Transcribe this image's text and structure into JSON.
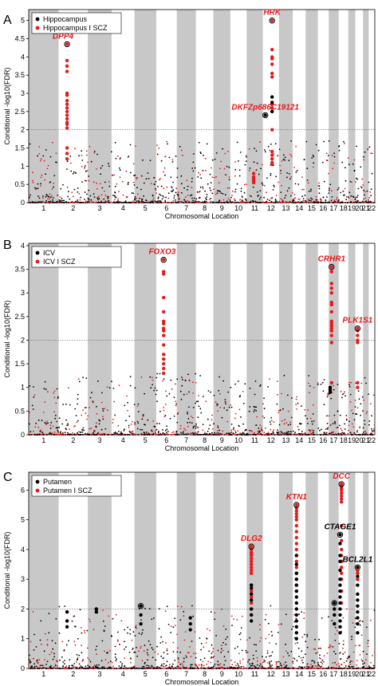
{
  "chart_data": [
    {
      "type": "scatter",
      "panel_letter": "A",
      "xlabel": "Chromosomal Location",
      "ylabel": "Conditional -log10(FDR)",
      "ylim": [
        0,
        5.3
      ],
      "yticks": [
        0,
        0.5,
        1,
        1.5,
        2,
        2.5,
        3,
        3.5,
        4,
        4.5,
        5
      ],
      "fdr_threshold": 2,
      "chromosomes": [
        "1",
        "2",
        "3",
        "4",
        "5",
        "6",
        "7",
        "8",
        "9",
        "10",
        "11",
        "12",
        "13",
        "14",
        "15",
        "16",
        "17",
        "18",
        "19",
        "20",
        "21",
        "22"
      ],
      "legend_placement": "top-left",
      "series": [
        {
          "name": "Hippocampus",
          "color": "#000000"
        },
        {
          "name": "Hippocampus I SCZ",
          "color": "#e41a1c"
        }
      ],
      "annotations": [
        {
          "label": "DPP4",
          "chrom": 2,
          "y": 4.35,
          "color": "#e41a1c"
        },
        {
          "label": "HRK",
          "chrom": 12.6,
          "y": 5.0,
          "color": "#e41a1c"
        },
        {
          "label": "DKFZp686C19121",
          "chrom": 12,
          "y": 2.4,
          "color": "#e41a1c"
        }
      ],
      "peaks": [
        {
          "chrom": 2.2,
          "points": [
            4.35,
            3.9,
            3.75,
            3.6,
            3.0,
            2.95,
            2.8,
            2.7,
            2.6,
            2.5,
            2.4,
            2.3,
            2.2,
            2.15,
            2.05,
            1.5,
            1.35,
            1.2
          ],
          "color": "#e41a1c",
          "ring": 4.35
        },
        {
          "chrom": 12.6,
          "points": [
            5.0,
            4.2,
            4.0,
            3.95,
            3.8,
            3.55,
            3.45,
            2.7,
            2.6,
            2.5,
            2.0,
            1.4,
            1.3,
            1.2,
            1.1,
            1.05
          ],
          "color": "#e41a1c",
          "ring": 5.0
        },
        {
          "chrom": 12.6,
          "points": [
            2.9,
            2.75,
            2.5
          ],
          "color": "#000000"
        },
        {
          "chrom": 12.0,
          "points": [
            2.4
          ],
          "color": "#000000",
          "ring": 2.4
        },
        {
          "chrom": 11.4,
          "points": [
            0.8,
            0.7,
            0.65,
            0.6,
            0.55
          ],
          "color": "#e41a1c"
        }
      ]
    },
    {
      "type": "scatter",
      "panel_letter": "B",
      "xlabel": "Chromosomal Location",
      "ylabel": "Conditional -log10(FDR)",
      "ylim": [
        0,
        4.05
      ],
      "yticks": [
        0,
        0.5,
        1,
        1.5,
        2,
        2.5,
        3,
        3.5,
        4
      ],
      "fdr_threshold": 2,
      "chromosomes": [
        "1",
        "2",
        "3",
        "4",
        "5",
        "6",
        "7",
        "8",
        "9",
        "10",
        "11",
        "12",
        "13",
        "14",
        "15",
        "16",
        "17",
        "18",
        "19",
        "20",
        "21",
        "22"
      ],
      "legend_placement": "top-left",
      "series": [
        {
          "name": "ICV",
          "color": "#000000"
        },
        {
          "name": "ICV I SCZ",
          "color": "#e41a1c"
        }
      ],
      "annotations": [
        {
          "label": "FOXO3",
          "chrom": 6.2,
          "y": 3.7,
          "color": "#e41a1c"
        },
        {
          "label": "CRHR1",
          "chrom": 17.2,
          "y": 3.55,
          "color": "#e41a1c"
        },
        {
          "label": "PLK1S1",
          "chrom": 20.2,
          "y": 2.25,
          "color": "#e41a1c"
        }
      ],
      "peaks": [
        {
          "chrom": 6.3,
          "points": [
            3.7,
            3.45,
            3.4,
            2.9,
            2.6,
            2.4,
            2.35,
            2.25,
            2.2,
            2.1,
            1.9,
            1.7,
            1.6,
            1.5,
            1.4,
            1.3
          ],
          "color": "#e41a1c",
          "ring": 3.7
        },
        {
          "chrom": 17.2,
          "points": [
            3.55,
            3.45,
            3.2,
            3.1,
            3.0,
            2.8,
            2.75,
            2.6,
            2.4,
            2.35,
            2.3,
            2.25,
            2.2,
            2.1,
            1.95,
            1.1
          ],
          "color": "#e41a1c",
          "ring": 3.55
        },
        {
          "chrom": 20.2,
          "points": [
            2.25,
            2.2,
            2.1,
            2.0,
            1.95,
            1.1,
            1.0
          ],
          "color": "#e41a1c",
          "ring": 2.25
        },
        {
          "chrom": 17.0,
          "points": [
            1.0,
            0.95,
            0.9
          ],
          "color": "#000000"
        }
      ]
    },
    {
      "type": "scatter",
      "panel_letter": "C",
      "xlabel": "Chromosomal Location",
      "ylabel": "Conditional -log10(FDR)",
      "ylim": [
        0,
        6.6
      ],
      "yticks": [
        0,
        1,
        2,
        3,
        4,
        5,
        6
      ],
      "fdr_threshold": 2,
      "chromosomes": [
        "1",
        "2",
        "3",
        "4",
        "5",
        "6",
        "7",
        "8",
        "9",
        "10",
        "11",
        "12",
        "13",
        "14",
        "15",
        "16",
        "17",
        "18",
        "19",
        "20",
        "21",
        "22"
      ],
      "legend_placement": "top-left",
      "series": [
        {
          "name": "Putamen",
          "color": "#000000"
        },
        {
          "name": "Putamen I SCZ",
          "color": "#e41a1c"
        }
      ],
      "annotations": [
        {
          "label": "DLG2",
          "chrom": 11.2,
          "y": 4.1,
          "color": "#e41a1c"
        },
        {
          "label": "KTN1",
          "chrom": 14.2,
          "y": 5.5,
          "color": "#e41a1c"
        },
        {
          "label": "DCC",
          "chrom": 18.2,
          "y": 6.2,
          "color": "#e41a1c"
        },
        {
          "label": "CTAGE1",
          "chrom": 18.0,
          "y": 4.5,
          "color": "#000000"
        },
        {
          "label": "BCL2L1",
          "chrom": 20.2,
          "y": 3.4,
          "color": "#000000"
        }
      ],
      "peaks": [
        {
          "chrom": 11.2,
          "points": [
            4.1,
            4.0,
            3.9,
            3.85,
            3.8,
            3.7,
            3.6,
            3.5,
            3.4,
            3.3,
            3.2,
            2.8,
            2.6,
            2.4,
            2.2,
            2.0,
            1.8
          ],
          "color": "#e41a1c",
          "ring": 4.1
        },
        {
          "chrom": 11.2,
          "points": [
            2.8,
            2.7,
            2.5,
            2.3,
            2.0,
            1.8,
            1.6
          ],
          "color": "#000000"
        },
        {
          "chrom": 14.2,
          "points": [
            5.5,
            5.4,
            5.3,
            5.2,
            5.1,
            5.0,
            4.8,
            4.6,
            4.4,
            4.2,
            4.0,
            3.8,
            3.6,
            3.4,
            3.2,
            3.0,
            2.8,
            2.6
          ],
          "color": "#e41a1c",
          "ring": 5.5
        },
        {
          "chrom": 14.2,
          "points": [
            3.8,
            3.5,
            3.2,
            3.0,
            2.8,
            2.6,
            2.4,
            2.2,
            2.0,
            1.8,
            1.6,
            1.4,
            1.2,
            1.0
          ],
          "color": "#000000"
        },
        {
          "chrom": 18.2,
          "points": [
            6.2,
            6.15,
            6.1,
            6.05,
            6.0,
            5.9,
            5.8,
            5.7,
            5.6,
            4.8,
            4.3,
            4.0,
            3.8,
            3.6,
            3.4,
            3.2,
            3.0,
            2.6,
            2.2
          ],
          "color": "#e41a1c",
          "ring": 6.2
        },
        {
          "chrom": 18.0,
          "points": [
            4.5,
            4.2,
            3.8,
            3.6,
            3.3,
            3.0,
            2.8,
            2.6,
            2.4,
            2.2,
            2.0,
            1.8,
            1.6,
            1.4,
            1.2
          ],
          "color": "#000000",
          "ring": 4.5
        },
        {
          "chrom": 20.2,
          "points": [
            3.4,
            3.3,
            3.2,
            3.1,
            3.0,
            2.8,
            2.5,
            2.3,
            2.1,
            1.9,
            1.7,
            1.5,
            1.2
          ],
          "color": "#000000",
          "ring": 3.4
        },
        {
          "chrom": 20.2,
          "points": [
            3.3,
            3.2,
            3.0
          ],
          "color": "#e41a1c"
        },
        {
          "chrom": 17.6,
          "points": [
            2.2,
            2.0,
            1.8,
            1.5
          ],
          "color": "#000000",
          "ring": 2.2
        },
        {
          "chrom": 5.2,
          "points": [
            2.1,
            1.8,
            1.5
          ],
          "color": "#000000",
          "ring": 2.1
        },
        {
          "chrom": 3.3,
          "points": [
            2.0,
            1.9
          ],
          "color": "#000000"
        },
        {
          "chrom": 2.2,
          "points": [
            1.9,
            1.6,
            1.4
          ],
          "color": "#000000"
        },
        {
          "chrom": 7.8,
          "points": [
            1.7,
            1.5,
            1.3
          ],
          "color": "#000000"
        }
      ]
    }
  ]
}
